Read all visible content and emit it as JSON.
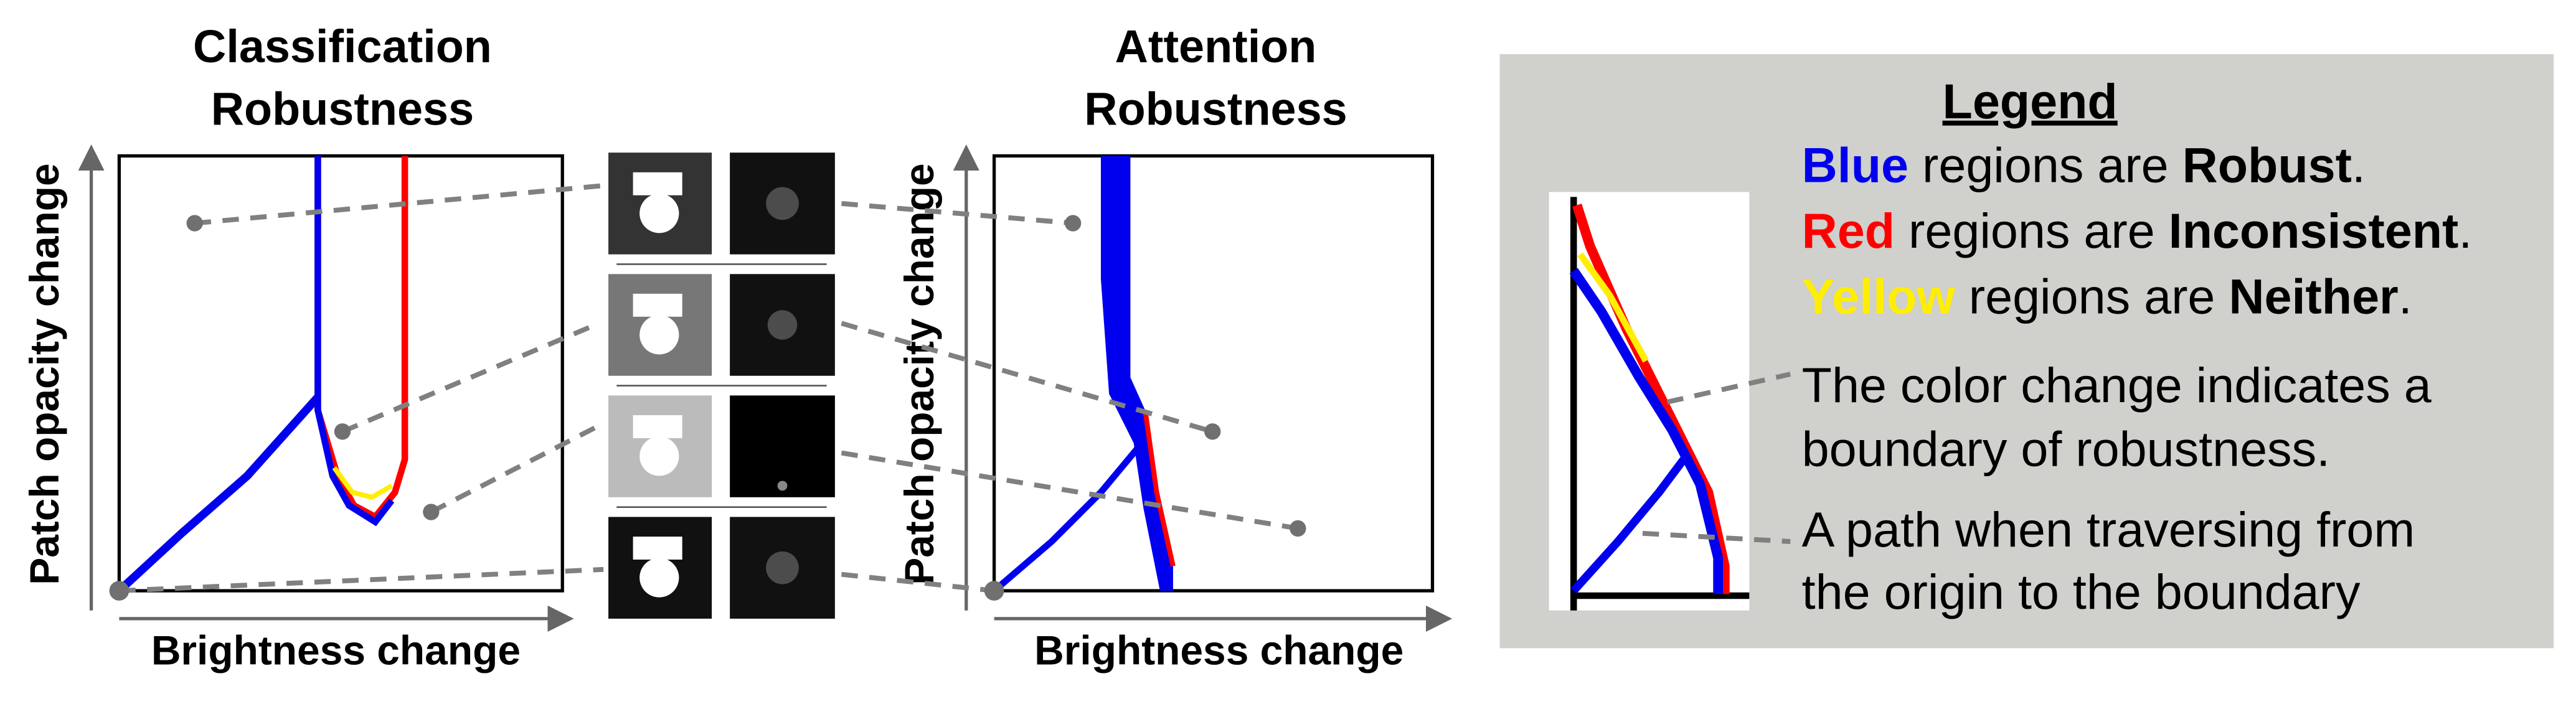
{
  "panels": [
    {
      "title": [
        "Classification",
        "Robustness"
      ],
      "xlabel": "Brightness change",
      "ylabel": "Patch opacity change"
    },
    {
      "title": [
        "Attention",
        "Robustness"
      ],
      "xlabel": "Brightness change",
      "ylabel": "Patch opacity change"
    }
  ],
  "legend": {
    "title": "Legend",
    "items": [
      [
        "Blue",
        " regions are ",
        "Robust",
        "."
      ],
      [
        "Red",
        " regions are ",
        "Inconsistent",
        "."
      ],
      [
        "Yellow",
        " regions are ",
        "Neither",
        "."
      ]
    ],
    "notes": [
      [
        "The color change indicates a",
        "boundary of robustness."
      ],
      [
        "A path when traversing from",
        "the origin to the boundary"
      ]
    ]
  }
}
